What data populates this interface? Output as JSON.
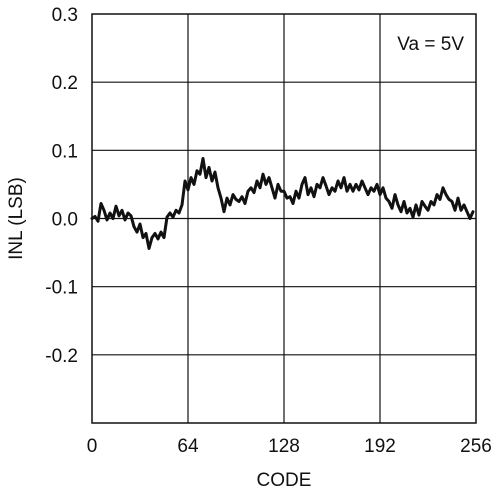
{
  "chart_data": {
    "type": "line",
    "title": "",
    "xlabel": "CODE",
    "ylabel": "INL (LSB)",
    "annotation": "Va = 5V",
    "xlim": [
      0,
      256
    ],
    "ylim": [
      -0.3,
      0.3
    ],
    "grid": true,
    "x_ticks": [
      0,
      64,
      128,
      192,
      256
    ],
    "x_tick_labels": [
      "0",
      "64",
      "128",
      "192",
      "256"
    ],
    "y_ticks": [
      0.3,
      0.2,
      0.1,
      0.0,
      -0.1,
      -0.2
    ],
    "y_tick_labels": [
      "0.3",
      "0.2",
      "0.1",
      "0.0",
      "-0.1",
      "-0.2"
    ],
    "colors": {
      "line": "#111111",
      "grid": "#111111",
      "frame": "#111111"
    },
    "series": [
      {
        "x": [
          0,
          2,
          4,
          6,
          8,
          10,
          12,
          14,
          16,
          18,
          20,
          22,
          24,
          26,
          28,
          30,
          32,
          34,
          36,
          38,
          40,
          42,
          44,
          46,
          48,
          50,
          52,
          54,
          56,
          58,
          60,
          62,
          64,
          66,
          68,
          70,
          72,
          74,
          76,
          78,
          80,
          82,
          84,
          86,
          88,
          90,
          92,
          94,
          96,
          98,
          100,
          102,
          104,
          106,
          108,
          110,
          112,
          114,
          116,
          118,
          120,
          122,
          124,
          126,
          128,
          130,
          132,
          134,
          136,
          138,
          140,
          142,
          144,
          146,
          148,
          150,
          152,
          154,
          156,
          158,
          160,
          162,
          164,
          166,
          168,
          170,
          172,
          174,
          176,
          178,
          180,
          182,
          184,
          186,
          188,
          190,
          192,
          194,
          196,
          198,
          200,
          202,
          204,
          206,
          208,
          210,
          212,
          214,
          216,
          218,
          220,
          222,
          224,
          226,
          228,
          230,
          232,
          234,
          236,
          238,
          240,
          242,
          244,
          246,
          248,
          250,
          252,
          254
        ],
        "values": [
          0.0,
          0.003,
          -0.004,
          0.022,
          0.012,
          -0.002,
          0.008,
          0.0,
          0.018,
          0.004,
          0.012,
          -0.002,
          0.008,
          0.004,
          -0.012,
          -0.02,
          -0.008,
          -0.028,
          -0.022,
          -0.044,
          -0.028,
          -0.022,
          -0.03,
          -0.02,
          -0.028,
          0.002,
          0.008,
          0.002,
          0.012,
          0.008,
          0.02,
          0.055,
          0.042,
          0.06,
          0.05,
          0.07,
          0.065,
          0.088,
          0.06,
          0.075,
          0.055,
          0.068,
          0.045,
          0.03,
          0.01,
          0.03,
          0.02,
          0.035,
          0.028,
          0.025,
          0.032,
          0.022,
          0.04,
          0.045,
          0.038,
          0.055,
          0.045,
          0.065,
          0.05,
          0.06,
          0.045,
          0.03,
          0.05,
          0.04,
          0.04,
          0.03,
          0.032,
          0.022,
          0.04,
          0.03,
          0.05,
          0.06,
          0.035,
          0.045,
          0.032,
          0.05,
          0.045,
          0.06,
          0.048,
          0.035,
          0.045,
          0.04,
          0.055,
          0.045,
          0.06,
          0.04,
          0.05,
          0.04,
          0.05,
          0.042,
          0.055,
          0.045,
          0.035,
          0.045,
          0.04,
          0.05,
          0.035,
          0.045,
          0.03,
          0.025,
          0.015,
          0.035,
          0.02,
          0.01,
          0.025,
          0.008,
          0.015,
          0.002,
          0.02,
          0.005,
          0.025,
          0.018,
          0.012,
          0.025,
          0.02,
          0.035,
          0.028,
          0.045,
          0.035,
          0.028,
          0.025,
          0.012,
          0.03,
          0.012,
          0.02,
          0.01,
          0.0,
          0.01
        ]
      }
    ]
  }
}
